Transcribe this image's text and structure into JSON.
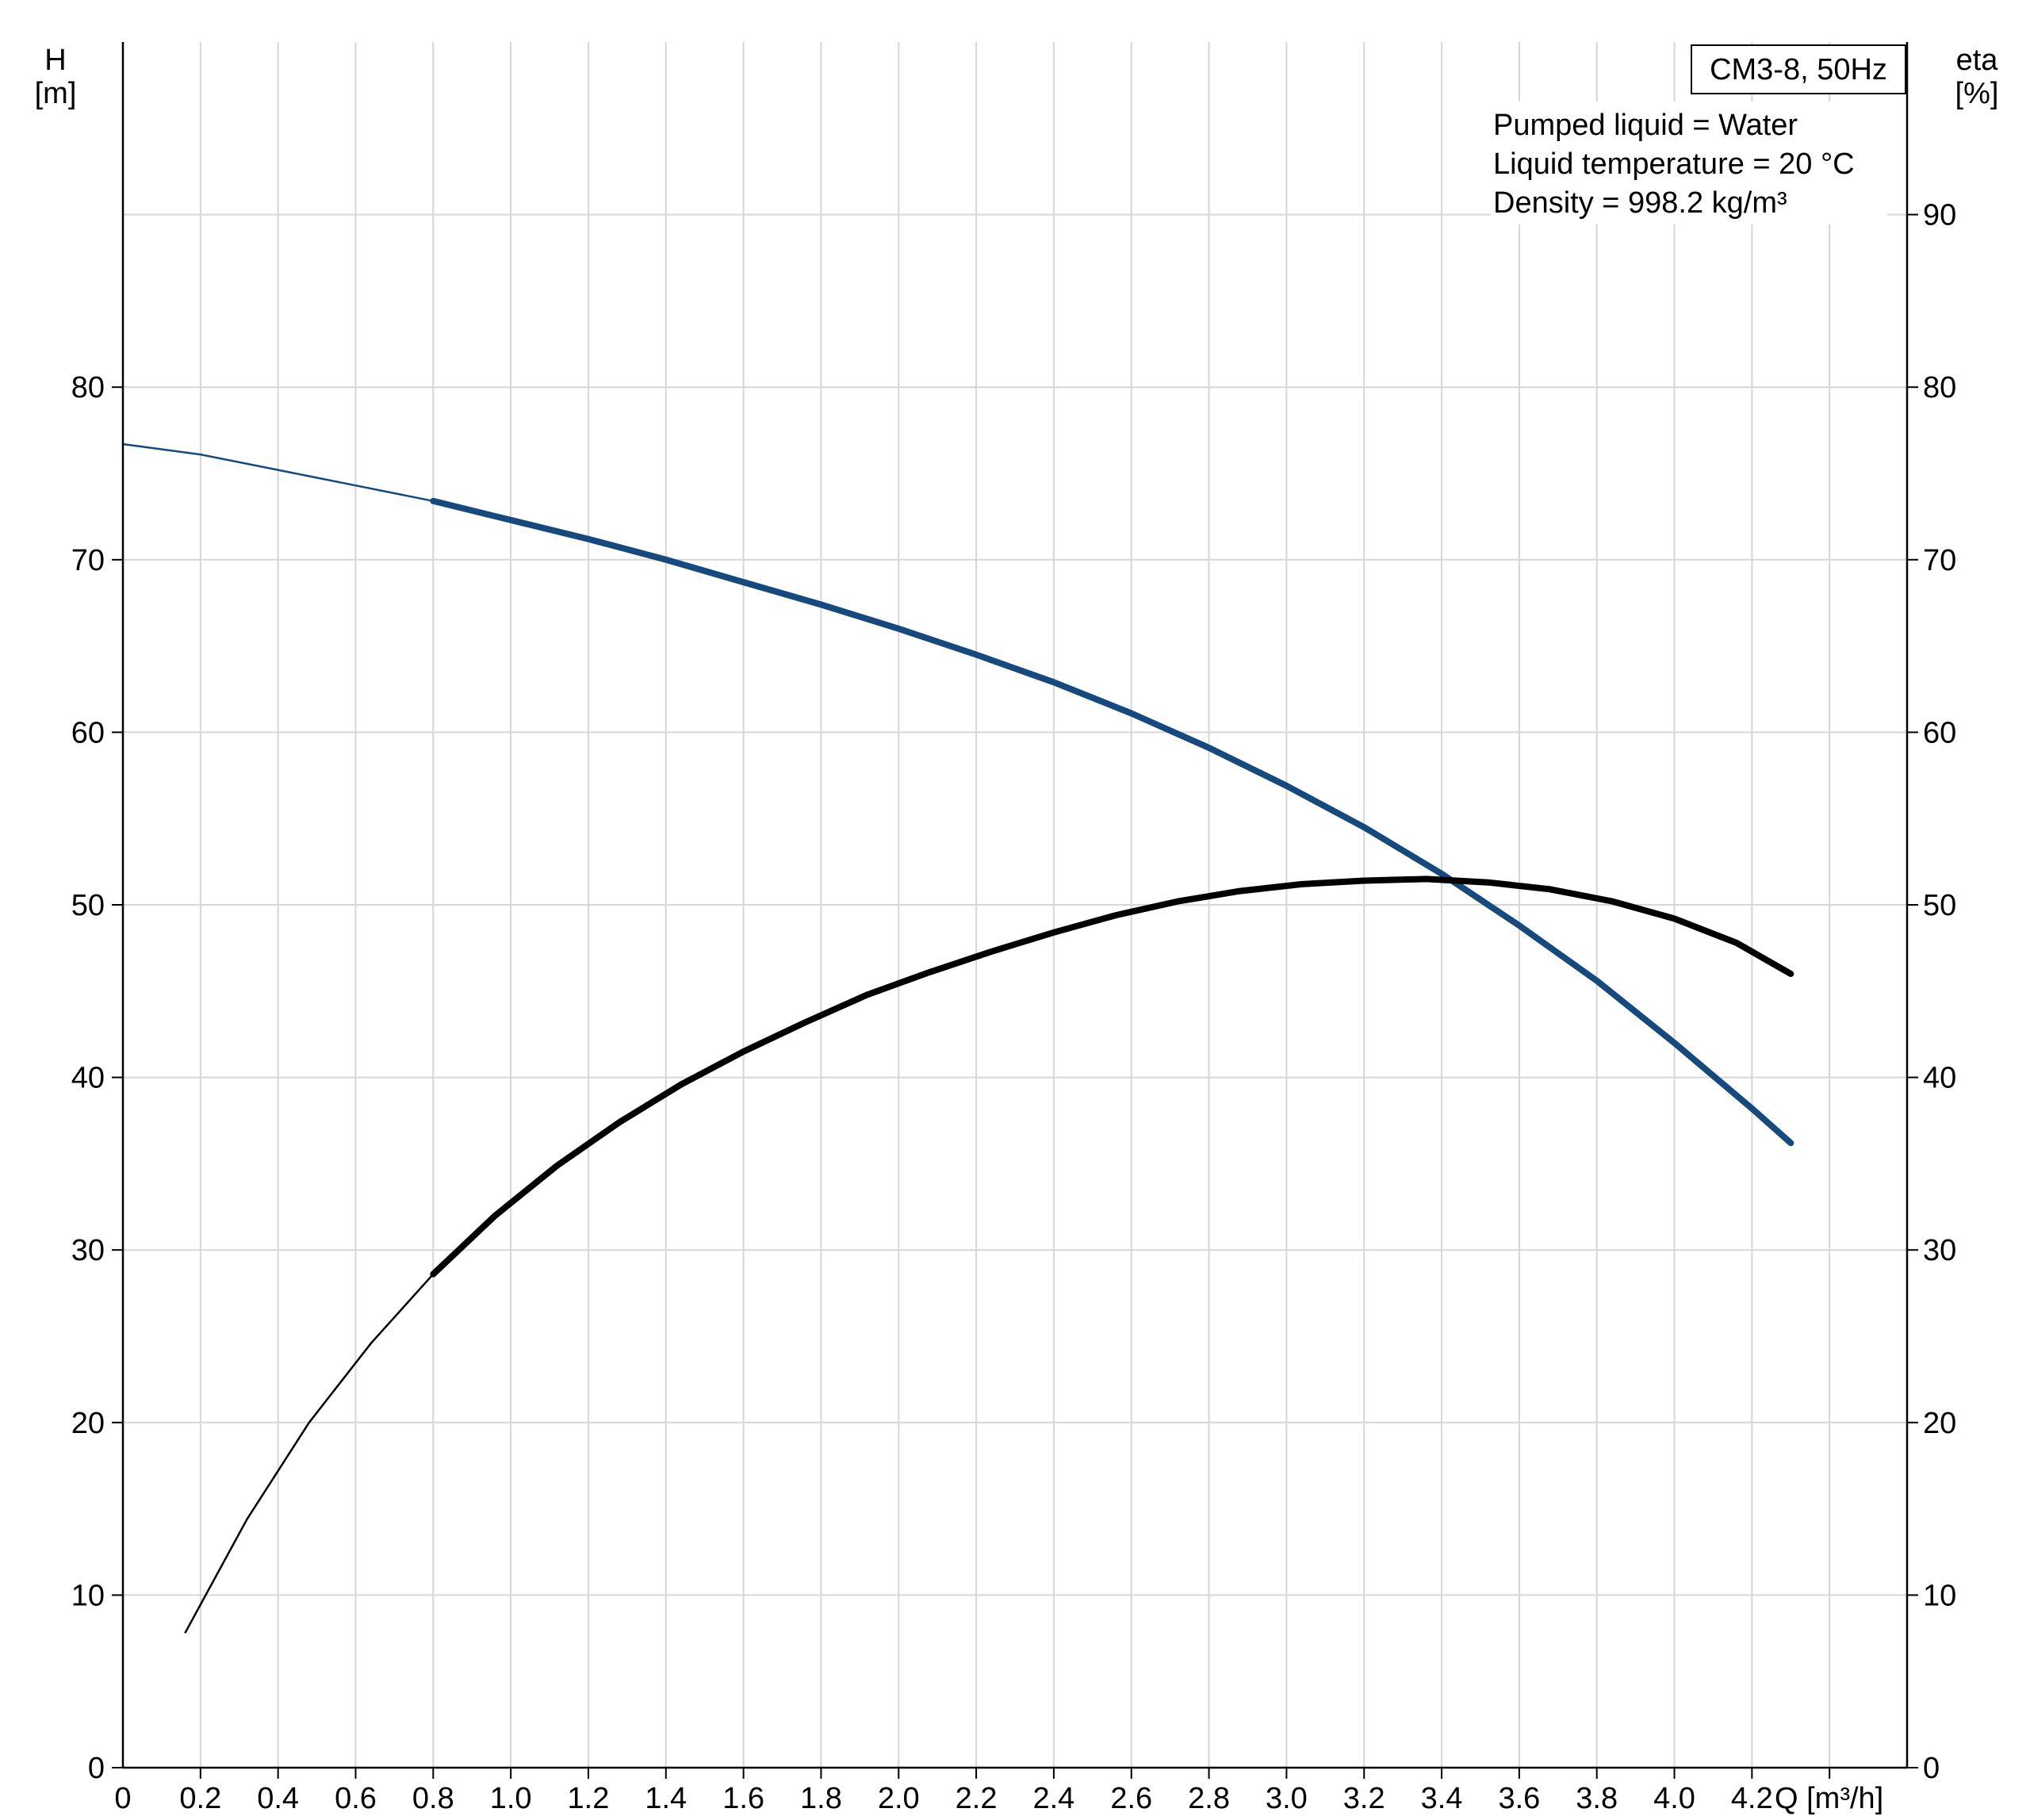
{
  "chart_data": {
    "type": "line",
    "title": "CM3-8, 50Hz",
    "info_lines": [
      "Pumped liquid = Water",
      "Liquid temperature = 20 °C",
      "Density = 998.2 kg/m³"
    ],
    "x_axis": {
      "label": "Q [m³/h]",
      "range": [
        0,
        4.6
      ],
      "tick_labels": [
        "0",
        "0.2",
        "0.4",
        "0.6",
        "0.8",
        "1.0",
        "1.2",
        "1.4",
        "1.6",
        "1.8",
        "2.0",
        "2.2",
        "2.4",
        "2.6",
        "2.8",
        "3.0",
        "3.2",
        "3.4",
        "3.6",
        "3.8",
        "4.0",
        "4.2"
      ]
    },
    "y_left": {
      "label_line1": "H",
      "label_line2": "[m]",
      "range": [
        0,
        100
      ],
      "tick_labels": [
        "0",
        "10",
        "20",
        "30",
        "40",
        "50",
        "60",
        "70",
        "80"
      ]
    },
    "y_right": {
      "label_line1": "eta",
      "label_line2": "[%]",
      "range": [
        0,
        100
      ],
      "tick_labels": [
        "0",
        "10",
        "20",
        "30",
        "40",
        "50",
        "60",
        "70",
        "80",
        "90"
      ]
    },
    "grid": true,
    "legend": "none",
    "series": [
      {
        "axis": "left",
        "color": "#164a7f",
        "thick_from": 0.8,
        "x": [
          0,
          0.2,
          0.4,
          0.6,
          0.8,
          1.0,
          1.2,
          1.4,
          1.6,
          1.8,
          2.0,
          2.2,
          2.4,
          2.6,
          2.8,
          3.0,
          3.2,
          3.4,
          3.6,
          3.8,
          4.0,
          4.2,
          4.3
        ],
        "y": [
          76.7,
          76.1,
          75.2,
          74.3,
          73.4,
          72.3,
          71.2,
          70.0,
          68.7,
          67.4,
          66.0,
          64.5,
          62.9,
          61.1,
          59.1,
          56.9,
          54.5,
          51.8,
          48.8,
          45.6,
          42.0,
          38.2,
          36.2
        ]
      },
      {
        "axis": "right",
        "color": "#000000",
        "thick_from": 0.8,
        "x": [
          0.16,
          0.32,
          0.48,
          0.64,
          0.8,
          0.96,
          1.12,
          1.28,
          1.44,
          1.6,
          1.76,
          1.92,
          2.08,
          2.24,
          2.4,
          2.56,
          2.72,
          2.88,
          3.04,
          3.2,
          3.36,
          3.52,
          3.68,
          3.84,
          4.0,
          4.16,
          4.3
        ],
        "y": [
          7.8,
          14.4,
          20.0,
          24.6,
          28.6,
          32.0,
          34.9,
          37.4,
          39.6,
          41.5,
          43.2,
          44.8,
          46.1,
          47.3,
          48.4,
          49.4,
          50.2,
          50.8,
          51.2,
          51.4,
          51.5,
          51.3,
          50.9,
          50.2,
          49.2,
          47.8,
          46.0
        ]
      }
    ]
  }
}
